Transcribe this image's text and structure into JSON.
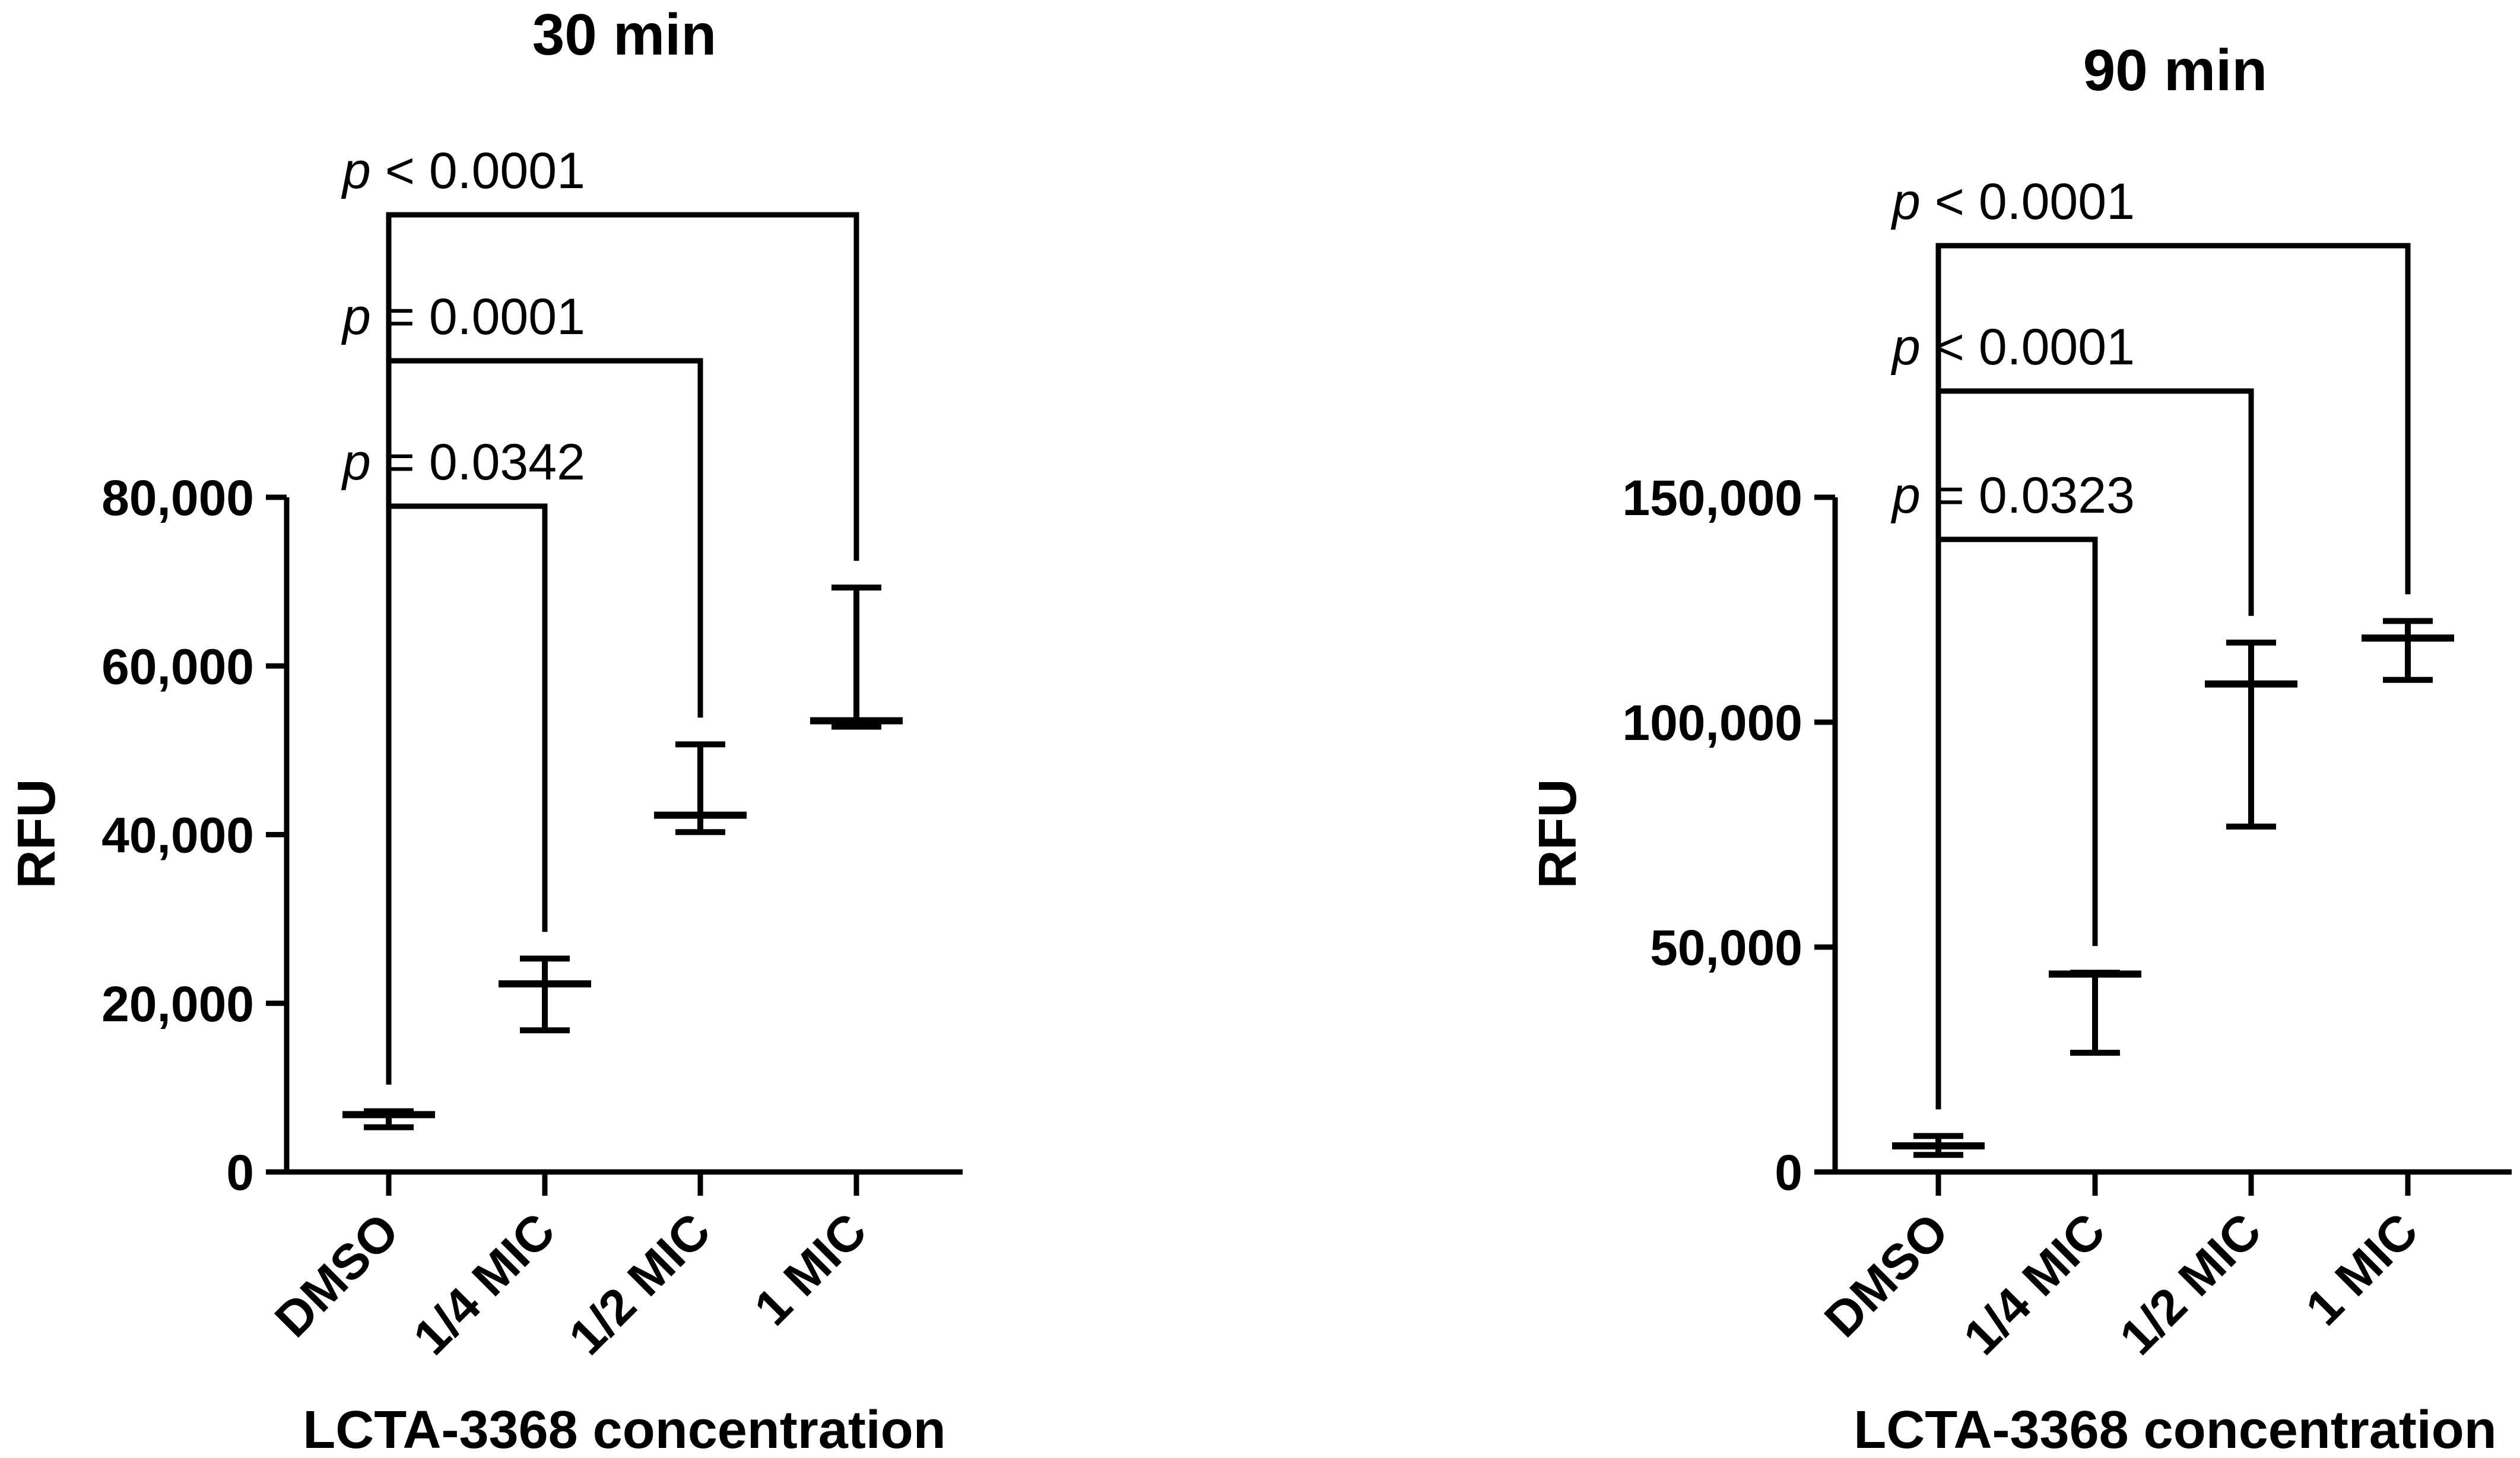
{
  "chart_data": [
    {
      "type": "scatter",
      "title": "30 min",
      "xlabel": "LCTA-3368 concentration",
      "ylabel": "RFU",
      "categories": [
        "DMSO",
        "1/4 MIC",
        "1/2 MIC",
        "1 MIC"
      ],
      "ylim": [
        0,
        80000
      ],
      "yticks": [
        0,
        20000,
        40000,
        60000,
        80000
      ],
      "ytick_labels": [
        "0",
        "20,000",
        "40,000",
        "60,000",
        "80,000"
      ],
      "series": [
        {
          "center": [
            6800,
            22300,
            42300,
            53500
          ],
          "low": [
            5300,
            16800,
            40300,
            52800
          ],
          "high": [
            7200,
            25300,
            50700,
            69300
          ]
        }
      ],
      "comparisons": [
        {
          "from": "DMSO",
          "to": "1/4 MIC",
          "p_symbol": "p",
          "p_text": " = 0.0342"
        },
        {
          "from": "DMSO",
          "to": "1/2 MIC",
          "p_symbol": "p",
          "p_text": " = 0.0001"
        },
        {
          "from": "DMSO",
          "to": "1 MIC",
          "p_symbol": "p",
          "p_text": " < 0.0001"
        }
      ]
    },
    {
      "type": "scatter",
      "title": "90 min",
      "xlabel": "LCTA-3368 concentration",
      "ylabel": "RFU",
      "categories": [
        "DMSO",
        "1/4 MIC",
        "1/2 MIC",
        "1 MIC"
      ],
      "ylim": [
        0,
        150000
      ],
      "yticks": [
        0,
        50000,
        100000,
        150000
      ],
      "ytick_labels": [
        "0",
        "50,000",
        "100,000",
        "150,000"
      ],
      "series": [
        {
          "center": [
            5800,
            44000,
            108500,
            118700
          ],
          "low": [
            3800,
            26500,
            76800,
            109400
          ],
          "high": [
            8000,
            44300,
            117700,
            122500
          ]
        }
      ],
      "comparisons": [
        {
          "from": "DMSO",
          "to": "1/4 MIC",
          "p_symbol": "p",
          "p_text": " = 0.0323"
        },
        {
          "from": "DMSO",
          "to": "1/2 MIC",
          "p_symbol": "p",
          "p_text": " < 0.0001"
        },
        {
          "from": "DMSO",
          "to": "1 MIC",
          "p_symbol": "p",
          "p_text": " < 0.0001"
        }
      ]
    }
  ]
}
